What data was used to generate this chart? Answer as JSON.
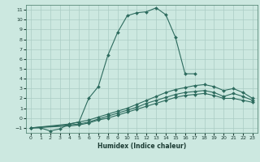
{
  "xlabel": "Humidex (Indice chaleur)",
  "background_color": "#cce8e0",
  "line_color": "#2d6b5e",
  "grid_color": "#aaccc4",
  "xlim": [
    -0.5,
    23.5
  ],
  "ylim": [
    -1.5,
    11.5
  ],
  "xticks": [
    0,
    1,
    2,
    3,
    4,
    5,
    6,
    7,
    8,
    9,
    10,
    11,
    12,
    13,
    14,
    15,
    16,
    17,
    18,
    19,
    20,
    21,
    22,
    23
  ],
  "yticks": [
    -1,
    0,
    1,
    2,
    3,
    4,
    5,
    6,
    7,
    8,
    9,
    10,
    11
  ],
  "lines": [
    {
      "x": [
        0,
        1,
        2,
        3,
        4,
        5,
        6,
        7,
        8,
        9,
        10,
        11,
        12,
        13,
        14,
        15,
        16,
        17
      ],
      "y": [
        -1,
        -1,
        -1.3,
        -1.1,
        -0.6,
        -0.4,
        2.0,
        3.2,
        6.4,
        8.7,
        10.4,
        10.7,
        10.8,
        11.2,
        10.5,
        8.2,
        4.5,
        4.5
      ]
    },
    {
      "x": [
        0,
        4,
        5,
        6,
        7,
        8,
        9,
        10,
        11,
        12,
        13,
        14,
        15,
        16,
        17,
        18,
        19,
        20,
        21,
        22,
        23
      ],
      "y": [
        -1,
        -0.6,
        -0.4,
        -0.2,
        0.1,
        0.4,
        0.7,
        1.0,
        1.4,
        1.8,
        2.2,
        2.6,
        2.9,
        3.1,
        3.3,
        3.4,
        3.2,
        2.8,
        3.0,
        2.6,
        2.0
      ]
    },
    {
      "x": [
        0,
        4,
        5,
        6,
        7,
        8,
        9,
        10,
        11,
        12,
        13,
        14,
        15,
        16,
        17,
        18,
        19,
        20,
        21,
        22,
        23
      ],
      "y": [
        -1,
        -0.7,
        -0.6,
        -0.4,
        -0.1,
        0.2,
        0.5,
        0.8,
        1.1,
        1.5,
        1.8,
        2.1,
        2.4,
        2.6,
        2.7,
        2.8,
        2.6,
        2.2,
        2.5,
        2.2,
        1.8
      ]
    },
    {
      "x": [
        0,
        4,
        5,
        6,
        7,
        8,
        9,
        10,
        11,
        12,
        13,
        14,
        15,
        16,
        17,
        18,
        19,
        20,
        21,
        22,
        23
      ],
      "y": [
        -1,
        -0.8,
        -0.7,
        -0.5,
        -0.2,
        0.0,
        0.3,
        0.6,
        0.9,
        1.2,
        1.5,
        1.8,
        2.1,
        2.3,
        2.4,
        2.5,
        2.3,
        2.0,
        2.0,
        1.8,
        1.6
      ]
    }
  ]
}
